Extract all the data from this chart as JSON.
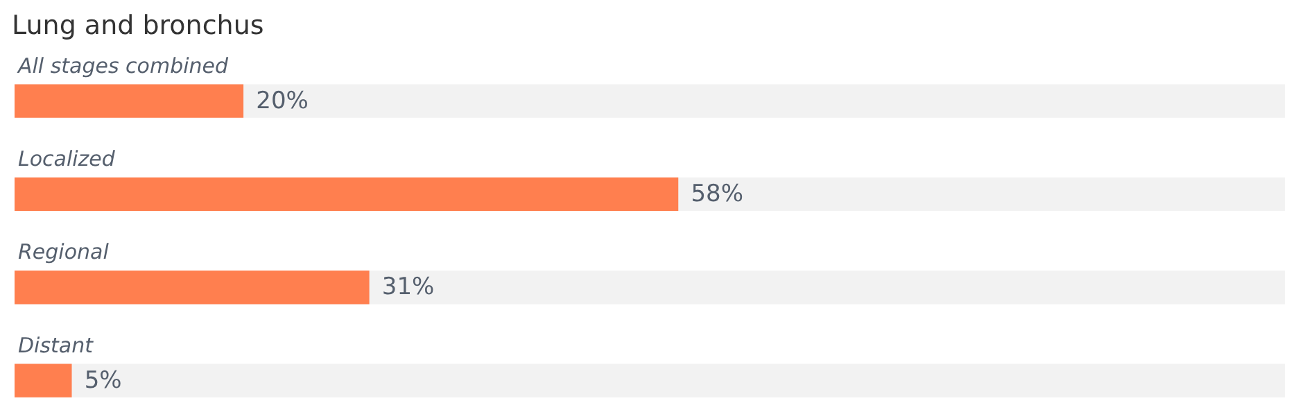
{
  "chart_data": {
    "type": "bar",
    "orientation": "horizontal",
    "title": "Lung and bronchus",
    "categories": [
      "All stages combined",
      "Localized",
      "Regional",
      "Distant"
    ],
    "values": [
      20,
      58,
      31,
      5
    ],
    "color": "#ff7f4f",
    "value_labels": [
      "20%",
      "58%",
      "31%",
      "5%"
    ],
    "xlim": [
      0,
      111
    ],
    "tick_labels": false,
    "grid": false
  }
}
